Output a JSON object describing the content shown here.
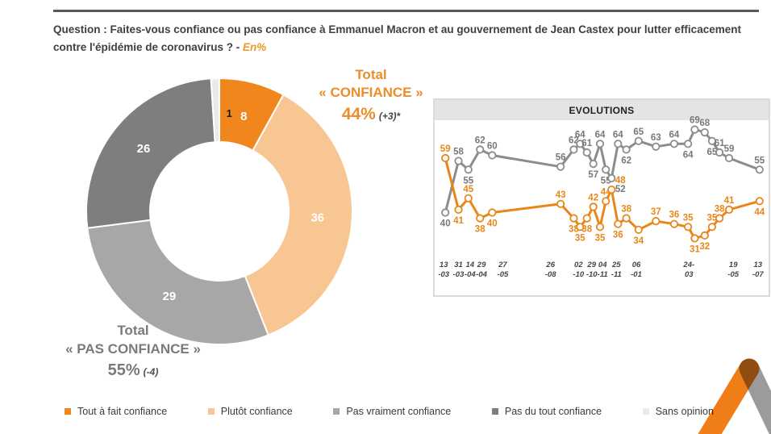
{
  "question": {
    "text": "Question : Faites-vous confiance ou pas confiance à Emmanuel Macron et au gouvernement de Jean Castex pour lutter efficacement contre l'épidémie de coronavirus ? - ",
    "en_label": "En%"
  },
  "totals": {
    "confiance": {
      "line1": "Total",
      "line2": "« CONFIANCE »",
      "value": "44%",
      "delta": "(+3)*"
    },
    "pas_confiance": {
      "line1": "Total",
      "line2": "« PAS CONFIANCE »",
      "value": "55%",
      "delta": "(-4)"
    }
  },
  "evolutions": {
    "title": "EVOLUTIONS"
  },
  "legend": [
    {
      "label": "Tout à fait confiance",
      "color": "#f0861c"
    },
    {
      "label": "Plutôt confiance",
      "color": "#f8c693"
    },
    {
      "label": "Pas vraiment confiance",
      "color": "#a7a7a7"
    },
    {
      "label": "Pas du tout confiance",
      "color": "#7e7e7e"
    },
    {
      "label": "Sans opinion",
      "color": "#eaeae8"
    }
  ],
  "colors": {
    "accent_orange": "#ed861b",
    "line_gray": "#8c8c8c",
    "label_gray": "#787878"
  },
  "chart_data": [
    {
      "type": "pie",
      "donut": true,
      "start_angle_deg": 0,
      "direction": "clockwise",
      "categories": [
        "Tout à fait confiance",
        "Plutôt confiance",
        "Pas vraiment confiance",
        "Pas du tout confiance",
        "Sans opinion"
      ],
      "values": [
        8,
        36,
        29,
        26,
        1
      ],
      "colors": [
        "#f0861c",
        "#f8c693",
        "#a7a7a7",
        "#7e7e7e",
        "#eaeae8"
      ],
      "label_colors": [
        "#ffffff",
        "#ffffff",
        "#ffffff",
        "#ffffff",
        "#1a1a1a"
      ],
      "label_dx": [
        0,
        0,
        0,
        0,
        16
      ]
    },
    {
      "type": "line",
      "title": "EVOLUTIONS",
      "ylim": [
        30,
        70
      ],
      "grid": false,
      "x": [
        0.013,
        0.054,
        0.085,
        0.121,
        0.159,
        0.372,
        0.413,
        0.433,
        0.454,
        0.474,
        0.495,
        0.513,
        0.531,
        0.551,
        0.577,
        0.615,
        0.669,
        0.726,
        0.769,
        0.79,
        0.821,
        0.844,
        0.867,
        0.897,
        0.992
      ],
      "series": [
        {
          "name": "Total Pas confiance",
          "color": "#8c8c8c",
          "label_color": "#787878",
          "values": [
            40,
            58,
            55,
            62,
            60,
            56,
            62,
            64,
            61,
            57,
            64,
            55,
            52,
            64,
            62,
            65,
            63,
            64,
            64,
            69,
            68,
            65,
            61,
            59,
            55
          ],
          "label_side": [
            "b",
            "a",
            "b",
            "a",
            "a",
            "a",
            "a",
            "a",
            "a",
            "b",
            "a",
            "b",
            "b",
            "a",
            "b",
            "a",
            "a",
            "a",
            "b",
            "a",
            "a",
            "b",
            "a",
            "a",
            "a"
          ],
          "label_dx": [
            0,
            0,
            0,
            0,
            0,
            0,
            0,
            0,
            0,
            0,
            0,
            0,
            11,
            0,
            0,
            0,
            0,
            0,
            0,
            0,
            0,
            0,
            0,
            0,
            0
          ]
        },
        {
          "name": "Total Confiance",
          "color": "#e9861a",
          "label_color": "#e9861a",
          "values": [
            59,
            41,
            45,
            38,
            40,
            43,
            38,
            35,
            38,
            42,
            35,
            44,
            48,
            36,
            38,
            34,
            37,
            36,
            35,
            31,
            32,
            35,
            38,
            41,
            44
          ],
          "label_side": [
            "a",
            "b",
            "a",
            "b",
            "b",
            "a",
            "b",
            "b",
            "b",
            "a",
            "b",
            "a",
            "a",
            "b",
            "a",
            "b",
            "a",
            "a",
            "a",
            "b",
            "b",
            "a",
            "a",
            "a",
            "b"
          ],
          "label_dx": [
            0,
            0,
            0,
            0,
            0,
            0,
            0,
            0,
            0,
            0,
            0,
            0,
            11,
            0,
            0,
            0,
            0,
            0,
            0,
            0,
            0,
            0,
            0,
            0,
            0
          ]
        }
      ],
      "x_ticks": [
        {
          "x": 0.008,
          "l1": "13",
          "l2": "-03"
        },
        {
          "x": 0.054,
          "l1": "31",
          "l2": "-03"
        },
        {
          "x": 0.09,
          "l1": "14",
          "l2": "-04"
        },
        {
          "x": 0.126,
          "l1": "29",
          "l2": "-04"
        },
        {
          "x": 0.192,
          "l1": "27",
          "l2": "-05"
        },
        {
          "x": 0.341,
          "l1": "26",
          "l2": "-08"
        },
        {
          "x": 0.428,
          "l1": "02",
          "l2": "-10"
        },
        {
          "x": 0.469,
          "l1": "29",
          "l2": "-10"
        },
        {
          "x": 0.503,
          "l1": "04",
          "l2": "-11"
        },
        {
          "x": 0.546,
          "l1": "25",
          "l2": "-11"
        },
        {
          "x": 0.608,
          "l1": "06",
          "l2": "-01"
        },
        {
          "x": 0.772,
          "l1": "24-",
          "l2": "03"
        },
        {
          "x": 0.91,
          "l1": "19",
          "l2": "-05"
        },
        {
          "x": 0.987,
          "l1": "13",
          "l2": "-07"
        }
      ]
    }
  ]
}
